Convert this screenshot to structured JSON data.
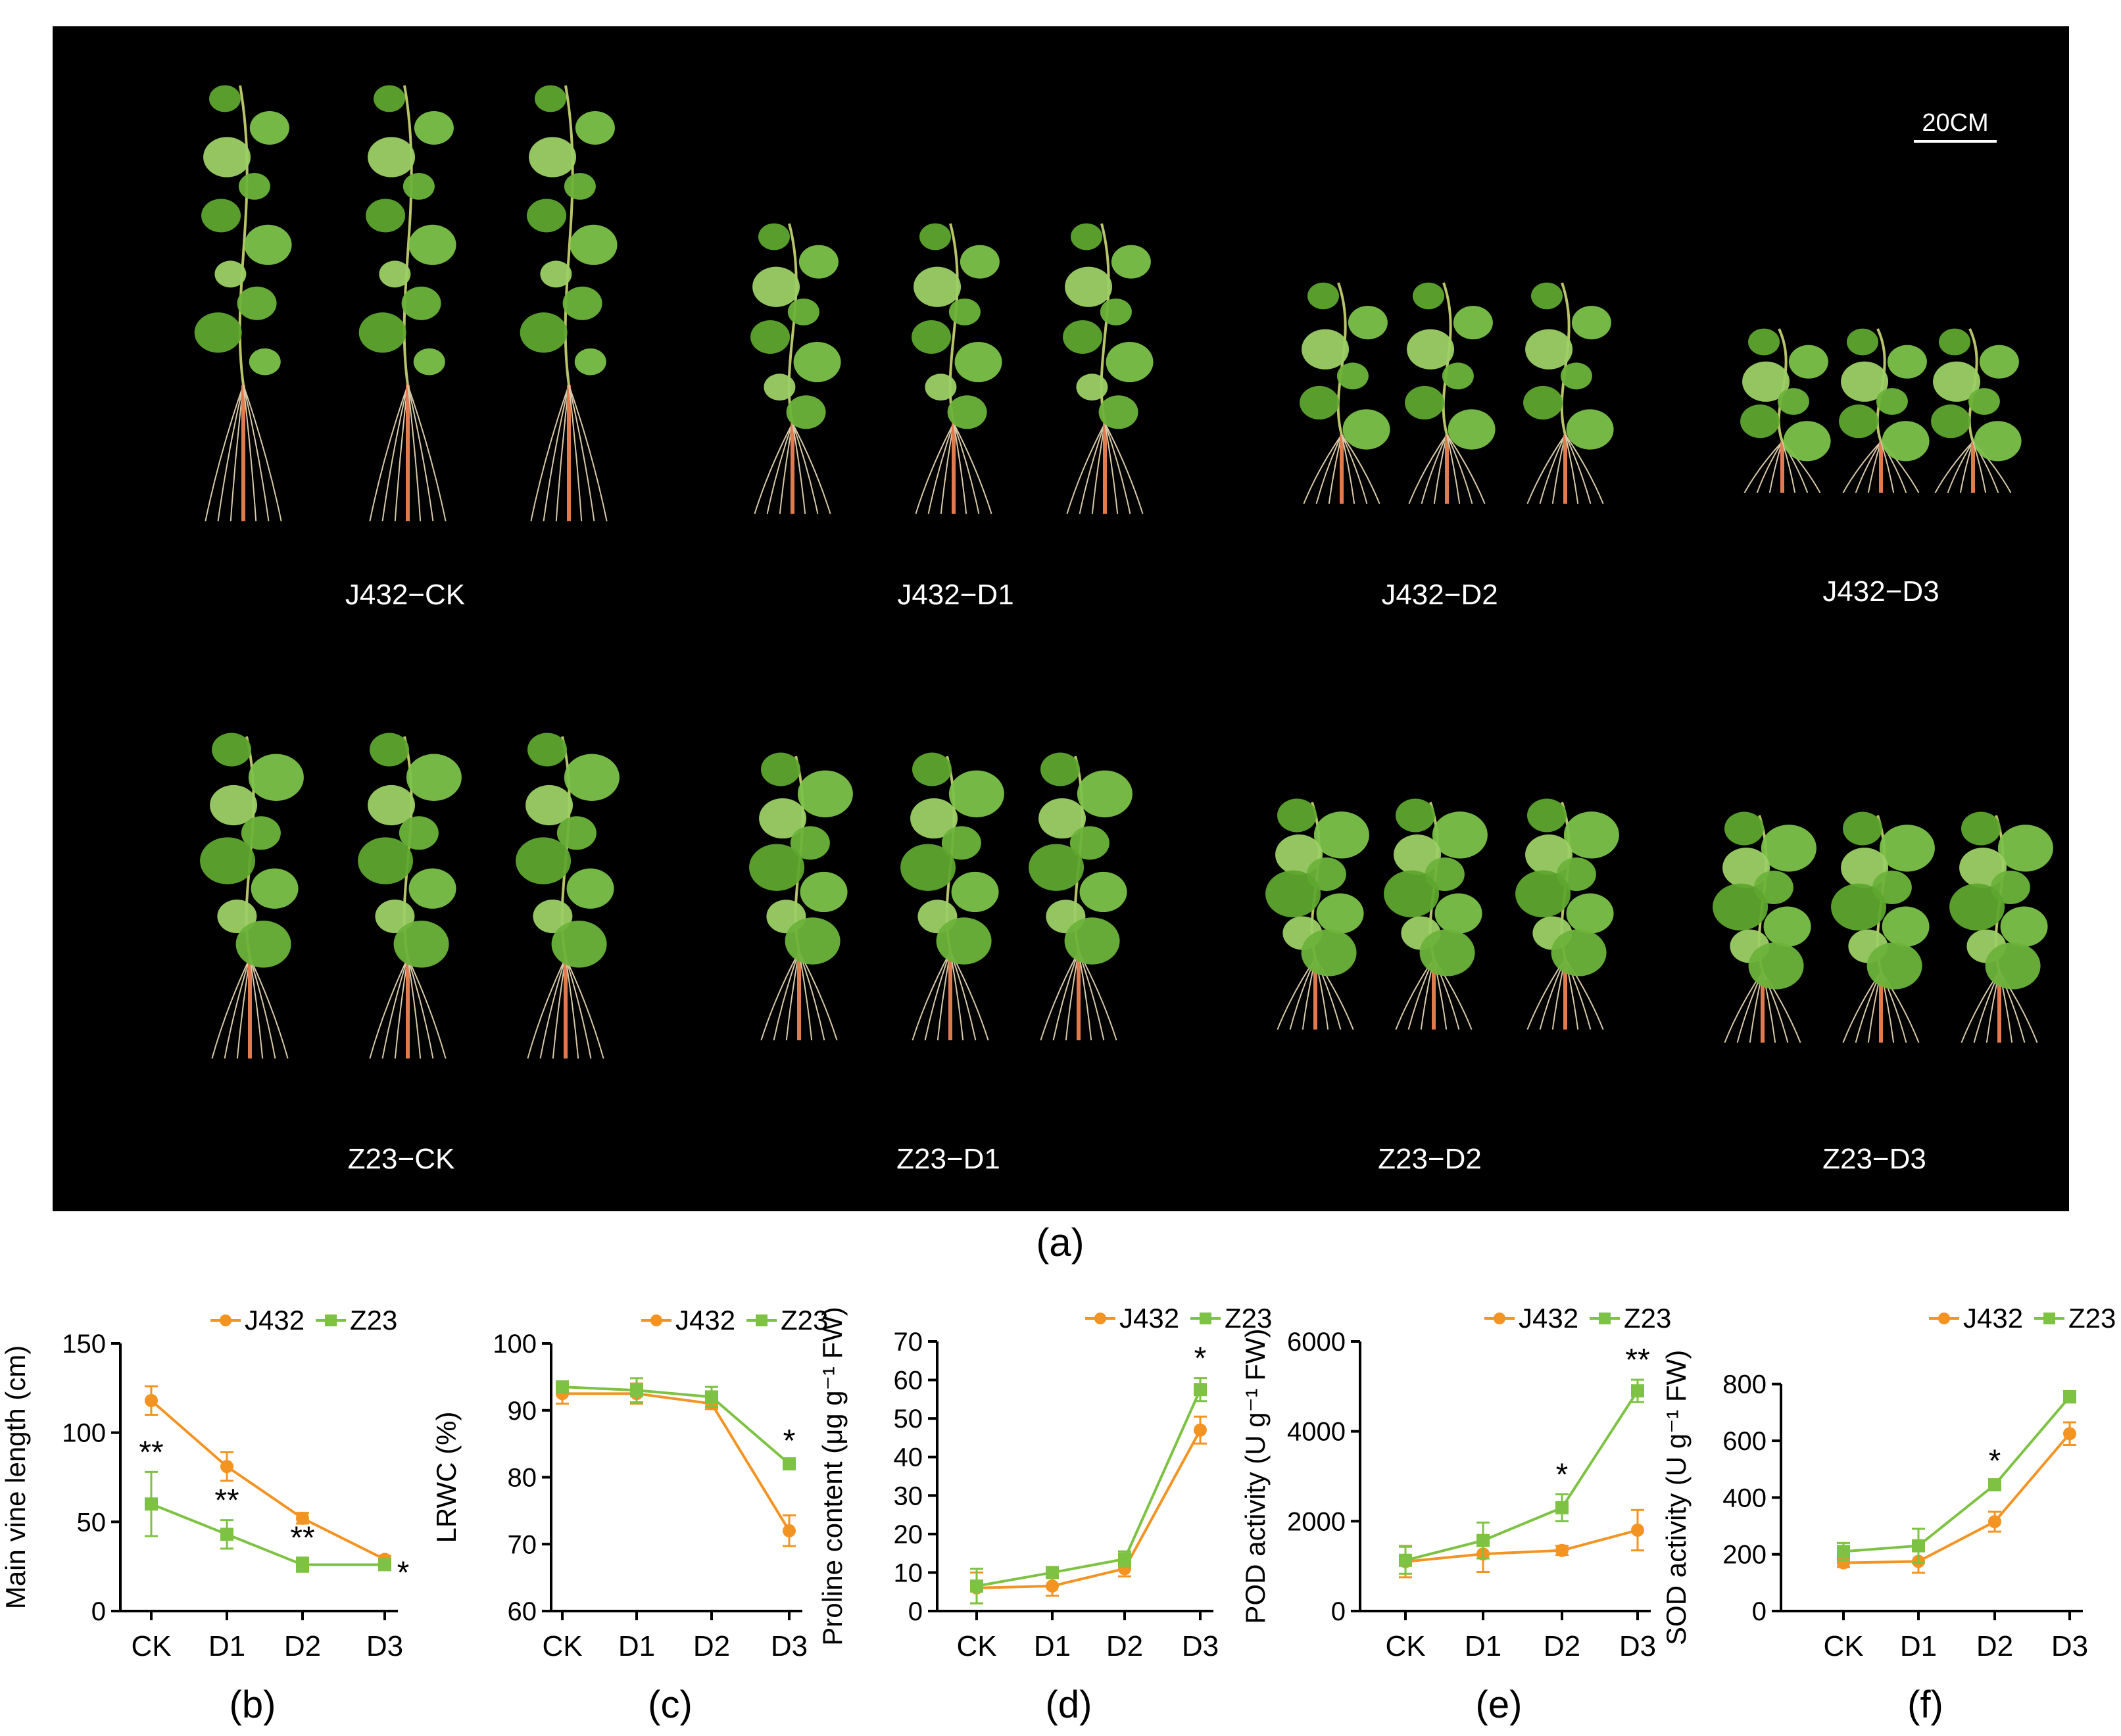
{
  "panel_a": {
    "letter": "(a)",
    "scale_bar": "20CM",
    "groups": [
      "J432−CK",
      "J432−D1",
      "J432−D2",
      "J432−D3",
      "Z23−CK",
      "Z23−D1",
      "Z23−D2",
      "Z23−D3"
    ]
  },
  "colors": {
    "J432": "#F39322",
    "Z23": "#7DC242",
    "photo_bg": "#000000"
  },
  "legend": {
    "J432": "J432",
    "Z23": "Z23"
  },
  "chart_data": [
    {
      "type": "line",
      "letter": "(b)",
      "ylabel": "Main vine length (cm)",
      "categories": [
        "CK",
        "D1",
        "D2",
        "D3"
      ],
      "ylim": [
        0,
        150
      ],
      "yticks": [
        0,
        50,
        100,
        150
      ],
      "series": [
        {
          "name": "J432",
          "values": [
            118,
            81,
            52,
            29
          ],
          "errors": [
            8,
            8,
            3,
            2
          ]
        },
        {
          "name": "Z23",
          "values": [
            60,
            43,
            26,
            26
          ],
          "errors": [
            18,
            8,
            4,
            2
          ]
        }
      ],
      "significance": [
        "**",
        "**",
        "**",
        "*"
      ]
    },
    {
      "type": "line",
      "letter": "(c)",
      "ylabel": "LRWC (%)",
      "categories": [
        "CK",
        "D1",
        "D2",
        "D3"
      ],
      "ylim": [
        60,
        100
      ],
      "yticks": [
        60,
        70,
        80,
        90,
        100
      ],
      "series": [
        {
          "name": "J432",
          "values": [
            92.5,
            92.5,
            91,
            72
          ],
          "errors": [
            1.5,
            1.5,
            0.8,
            2.3
          ]
        },
        {
          "name": "Z23",
          "values": [
            93.5,
            93,
            92,
            82
          ],
          "errors": [
            0.8,
            1.8,
            1.5,
            0.5
          ]
        }
      ],
      "significance": [
        "",
        "",
        "",
        "*"
      ]
    },
    {
      "type": "line",
      "letter": "(d)",
      "ylabel": "Proline content (μg g⁻¹ FW)",
      "categories": [
        "CK",
        "D1",
        "D2",
        "D3"
      ],
      "ylim": [
        0,
        70
      ],
      "yticks": [
        0,
        10,
        20,
        30,
        40,
        50,
        60,
        70
      ],
      "series": [
        {
          "name": "J432",
          "values": [
            6,
            6.5,
            11,
            47
          ],
          "errors": [
            4,
            2.5,
            2,
            3.5
          ]
        },
        {
          "name": "Z23",
          "values": [
            6.5,
            10,
            13.5,
            57.5
          ],
          "errors": [
            4.5,
            1,
            2,
            3
          ]
        }
      ],
      "significance": [
        "",
        "",
        "",
        "*"
      ]
    },
    {
      "type": "line",
      "letter": "(e)",
      "ylabel": "POD activity (U g⁻¹ FW)",
      "categories": [
        "CK",
        "D1",
        "D2",
        "D3"
      ],
      "ylim": [
        0,
        6000
      ],
      "yticks": [
        0,
        2000,
        4000,
        6000
      ],
      "series": [
        {
          "name": "J432",
          "values": [
            1100,
            1270,
            1350,
            1800
          ],
          "errors": [
            350,
            400,
            100,
            450
          ]
        },
        {
          "name": "Z23",
          "values": [
            1130,
            1570,
            2300,
            4900
          ],
          "errors": [
            300,
            400,
            300,
            250
          ]
        }
      ],
      "significance": [
        "",
        "",
        "*",
        "**"
      ]
    },
    {
      "type": "line",
      "letter": "(f)",
      "ylabel": "SOD activity (U g⁻¹ FW)",
      "categories": [
        "CK",
        "D1",
        "D2",
        "D3"
      ],
      "ylim": [
        0,
        950
      ],
      "yticks": [
        0,
        200,
        400,
        600,
        800
      ],
      "series": [
        {
          "name": "J432",
          "values": [
            170,
            175,
            315,
            625
          ],
          "errors": [
            15,
            40,
            35,
            40
          ]
        },
        {
          "name": "Z23",
          "values": [
            210,
            230,
            445,
            755
          ],
          "errors": [
            30,
            60,
            15,
            20
          ]
        }
      ],
      "significance": [
        "",
        "",
        "*",
        ""
      ]
    }
  ]
}
